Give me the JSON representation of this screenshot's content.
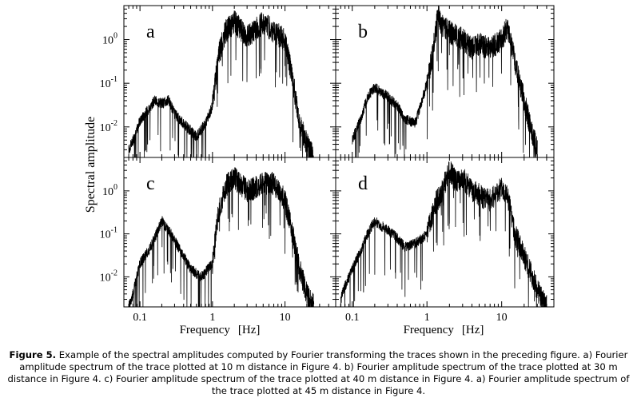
{
  "figure": {
    "ylabel": "Spectral amplitude",
    "xlabel_text": "Frequency",
    "xlabel_unit": "[Hz]",
    "x_tick_labels": [
      "0.1",
      "1",
      "10"
    ],
    "y_tick_labels": [
      {
        "base": "10",
        "exp": "0"
      },
      {
        "base": "10",
        "exp": "-1"
      },
      {
        "base": "10",
        "exp": "-2"
      }
    ]
  },
  "caption": {
    "label": "Figure 5.",
    "text": " Example of the spectral amplitudes computed by Fourier transforming the traces shown in the preceding figure. a) Fourier amplitude spectrum of the trace plotted at 10 m distance in Figure 4. b) Fourier amplitude spectrum of the trace plotted at 30 m distance in Figure 4. c) Fourier amplitude spectrum of the trace plotted at 40 m distance in Figure 4. a) Fourier amplitude spectrum of the trace plotted at 45 m distance in Figure 4."
  },
  "chart_data": [
    {
      "type": "line",
      "panel": "a",
      "xscale": "log",
      "yscale": "log",
      "xlim": [
        0.06,
        50
      ],
      "ylim": [
        0.002,
        6
      ],
      "x": [
        0.07,
        0.085,
        0.1,
        0.13,
        0.16,
        0.2,
        0.25,
        0.3,
        0.4,
        0.5,
        0.6,
        0.8,
        1,
        1.2,
        1.5,
        2,
        3,
        4,
        5,
        7,
        10,
        13,
        16,
        20,
        25
      ],
      "y": [
        0.003,
        0.006,
        0.014,
        0.025,
        0.04,
        0.035,
        0.04,
        0.02,
        0.012,
        0.008,
        0.006,
        0.012,
        0.03,
        0.4,
        1.5,
        2.5,
        1.2,
        1.8,
        2.5,
        1.5,
        1.0,
        0.1,
        0.012,
        0.004,
        0.002
      ]
    },
    {
      "type": "line",
      "panel": "b",
      "xscale": "log",
      "yscale": "log",
      "xlim": [
        0.06,
        50
      ],
      "ylim": [
        0.002,
        6
      ],
      "x": [
        0.1,
        0.13,
        0.16,
        0.2,
        0.25,
        0.3,
        0.4,
        0.5,
        0.7,
        1,
        1.2,
        1.4,
        1.6,
        2,
        3,
        4,
        5,
        7,
        10,
        12,
        15,
        20,
        25,
        30
      ],
      "y": [
        0.005,
        0.015,
        0.05,
        0.08,
        0.06,
        0.05,
        0.03,
        0.015,
        0.012,
        0.1,
        0.5,
        4.0,
        2.0,
        1.5,
        1.0,
        0.6,
        0.8,
        0.6,
        1.0,
        2.0,
        0.3,
        0.04,
        0.008,
        0.003
      ]
    },
    {
      "type": "line",
      "panel": "c",
      "xscale": "log",
      "yscale": "log",
      "xlim": [
        0.06,
        50
      ],
      "ylim": [
        0.002,
        6
      ],
      "x": [
        0.07,
        0.08,
        0.09,
        0.1,
        0.13,
        0.16,
        0.2,
        0.25,
        0.3,
        0.4,
        0.5,
        0.7,
        1,
        1.2,
        1.6,
        2,
        3,
        4,
        5,
        7,
        10,
        13,
        16,
        20,
        25
      ],
      "y": [
        0.002,
        0.004,
        0.01,
        0.02,
        0.04,
        0.08,
        0.2,
        0.12,
        0.07,
        0.03,
        0.015,
        0.01,
        0.02,
        0.3,
        1.5,
        2.0,
        1.0,
        1.2,
        1.5,
        1.5,
        0.6,
        0.08,
        0.015,
        0.004,
        0.002
      ]
    },
    {
      "type": "line",
      "panel": "d",
      "xscale": "log",
      "yscale": "log",
      "xlim": [
        0.06,
        50
      ],
      "ylim": [
        0.002,
        6
      ],
      "x": [
        0.07,
        0.08,
        0.1,
        0.13,
        0.16,
        0.2,
        0.25,
        0.3,
        0.4,
        0.5,
        0.7,
        1,
        1.3,
        1.6,
        2,
        2.5,
        3,
        4,
        5,
        7,
        10,
        12,
        15,
        20,
        30,
        40
      ],
      "y": [
        0.003,
        0.006,
        0.015,
        0.04,
        0.1,
        0.2,
        0.15,
        0.12,
        0.08,
        0.05,
        0.06,
        0.1,
        0.5,
        1.0,
        3.0,
        1.5,
        2.0,
        1.0,
        0.8,
        0.6,
        1.2,
        0.8,
        0.1,
        0.03,
        0.005,
        0.002
      ]
    }
  ]
}
